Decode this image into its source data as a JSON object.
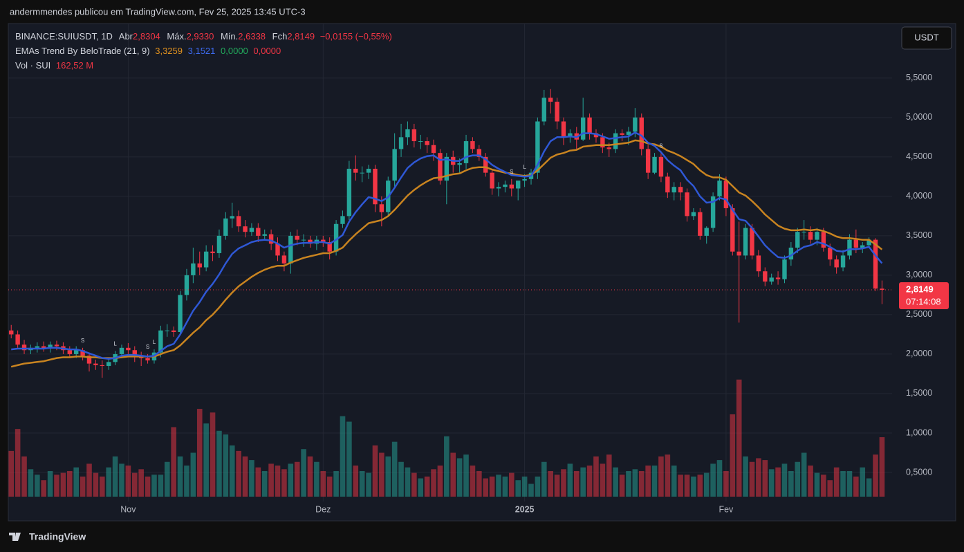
{
  "page": {
    "caption": "andermmendes publicou em TradingView.com, Fev 25, 2025 13:45 UTC-3",
    "brand": "TradingView"
  },
  "chart_data": {
    "type": "candlestick",
    "title": "BINANCE:SUIUSDT, 1D",
    "ohlc_labels": [
      {
        "label": "Abr",
        "value": "2,8304"
      },
      {
        "label": "Máx.",
        "value": "2,9330"
      },
      {
        "label": "Mín.",
        "value": "2,6338"
      },
      {
        "label": "Fch",
        "value": "2,8149"
      }
    ],
    "change": "−0,0155 (−0,55%)",
    "indicator": {
      "name": "EMAs Trend By BeloTrade (21, 9)",
      "values": [
        "3,3259",
        "3,1521",
        "0,0000",
        "0,0000"
      ]
    },
    "volume_legend": {
      "name": "Vol · SUI",
      "value": "162,52 M"
    },
    "currency": "USDT",
    "last_price": {
      "label": "2,8149",
      "countdown": "07:14:08"
    },
    "up_color": "#26a69a",
    "down_color": "#f23645",
    "open": [
      2.3,
      2.25,
      2.12,
      2.05,
      2.08,
      2.1,
      2.07,
      2.12,
      2.1,
      2.05,
      2.0,
      2.05,
      1.98,
      1.88,
      1.86,
      1.85,
      1.9,
      2.0,
      2.08,
      2.05,
      1.98,
      1.95,
      1.92,
      2.02,
      2.3,
      2.3,
      2.28,
      2.75,
      3.0,
      3.15,
      3.1,
      3.3,
      3.28,
      3.5,
      3.72,
      3.75,
      3.62,
      3.55,
      3.6,
      3.5,
      3.52,
      3.4,
      3.25,
      3.15,
      3.5,
      3.45,
      3.45,
      3.4,
      3.45,
      3.42,
      3.3,
      3.65,
      3.75,
      4.35,
      4.3,
      4.3,
      4.35,
      3.9,
      3.8,
      4.2,
      4.6,
      4.75,
      4.85,
      4.7,
      4.7,
      4.65,
      4.55,
      4.2,
      4.5,
      4.4,
      4.42,
      4.7,
      4.6,
      4.5,
      4.3,
      4.1,
      4.12,
      4.15,
      4.1,
      4.2,
      4.22,
      4.3,
      4.95,
      5.25,
      5.2,
      4.95,
      4.75,
      4.8,
      4.72,
      5.0,
      4.8,
      4.75,
      4.62,
      4.6,
      4.8,
      4.78,
      4.82,
      5.0,
      4.6,
      4.3,
      4.5,
      4.25,
      4.05,
      4.12,
      4.05,
      3.75,
      3.8,
      3.5,
      3.6,
      4.0,
      4.2,
      3.85,
      3.3,
      3.25,
      3.6,
      3.25,
      3.05,
      2.92,
      2.97,
      2.95,
      3.2,
      3.35,
      3.55,
      3.55,
      3.45,
      3.55,
      3.35,
      3.2,
      3.1,
      3.25,
      3.45,
      3.35,
      3.38,
      3.45,
      2.8304
    ],
    "high": [
      2.37,
      2.3,
      2.18,
      2.12,
      2.15,
      2.16,
      2.16,
      2.17,
      2.15,
      2.1,
      2.1,
      2.08,
      2.02,
      1.93,
      1.92,
      1.95,
      2.04,
      2.12,
      2.14,
      2.1,
      2.03,
      2.0,
      2.06,
      2.36,
      2.38,
      2.35,
      2.8,
      3.08,
      3.35,
      3.3,
      3.38,
      3.38,
      3.58,
      3.8,
      3.92,
      3.82,
      3.7,
      3.66,
      3.66,
      3.58,
      3.58,
      3.48,
      3.3,
      3.55,
      3.58,
      3.52,
      3.5,
      3.5,
      3.5,
      3.48,
      3.7,
      3.82,
      4.45,
      4.52,
      4.38,
      4.4,
      4.4,
      4.0,
      4.25,
      4.8,
      4.92,
      4.95,
      4.92,
      4.78,
      4.75,
      4.72,
      4.6,
      4.55,
      4.58,
      4.48,
      4.78,
      4.75,
      4.65,
      4.55,
      4.35,
      4.18,
      4.2,
      4.22,
      4.18,
      4.28,
      4.35,
      5.0,
      5.35,
      5.36,
      5.25,
      5.0,
      4.85,
      4.88,
      5.25,
      5.05,
      4.85,
      4.8,
      4.68,
      4.85,
      4.85,
      4.88,
      5.12,
      5.05,
      4.65,
      4.55,
      4.55,
      4.3,
      4.18,
      4.18,
      4.1,
      3.85,
      3.85,
      3.62,
      4.05,
      4.28,
      4.25,
      3.9,
      3.68,
      3.65,
      3.65,
      3.32,
      3.1,
      3.02,
      3.05,
      3.25,
      3.42,
      3.6,
      3.7,
      3.62,
      3.6,
      3.6,
      3.4,
      3.25,
      3.32,
      3.52,
      3.58,
      3.42,
      3.48,
      3.47,
      2.933
    ],
    "low": [
      2.2,
      2.08,
      2.0,
      2.0,
      2.02,
      2.03,
      2.02,
      2.05,
      2.0,
      1.96,
      1.95,
      1.92,
      1.78,
      1.8,
      1.7,
      1.8,
      1.86,
      1.95,
      2.0,
      1.9,
      1.85,
      1.88,
      1.88,
      1.96,
      2.22,
      2.22,
      2.25,
      2.68,
      2.9,
      3.0,
      3.05,
      3.18,
      3.22,
      3.45,
      3.6,
      3.55,
      3.48,
      3.5,
      3.42,
      3.44,
      3.32,
      3.18,
      3.05,
      3.02,
      3.38,
      3.36,
      3.35,
      3.32,
      3.36,
      3.2,
      3.25,
      3.6,
      3.7,
      4.2,
      4.18,
      4.22,
      3.8,
      3.62,
      3.75,
      4.1,
      4.5,
      4.65,
      4.62,
      4.6,
      4.55,
      4.45,
      4.15,
      3.9,
      4.3,
      4.3,
      4.35,
      4.55,
      4.45,
      4.25,
      4.02,
      4.0,
      4.05,
      4.0,
      3.95,
      4.12,
      4.15,
      4.22,
      4.9,
      5.05,
      4.85,
      4.65,
      4.68,
      4.6,
      4.7,
      4.72,
      4.68,
      4.55,
      4.5,
      4.55,
      4.7,
      4.65,
      4.75,
      4.52,
      4.22,
      4.28,
      4.18,
      3.98,
      3.95,
      3.95,
      3.68,
      3.7,
      3.45,
      3.4,
      3.55,
      3.95,
      3.75,
      3.25,
      2.4,
      3.2,
      3.2,
      2.98,
      2.86,
      2.88,
      2.88,
      2.9,
      3.12,
      3.28,
      3.45,
      3.4,
      3.38,
      3.3,
      3.12,
      3.02,
      3.05,
      3.2,
      3.28,
      3.28,
      3.35,
      2.8,
      2.6338
    ],
    "close": [
      2.25,
      2.12,
      2.05,
      2.08,
      2.1,
      2.07,
      2.12,
      2.1,
      2.05,
      2.0,
      2.05,
      1.98,
      1.88,
      1.86,
      1.85,
      1.9,
      2.0,
      2.08,
      2.05,
      1.98,
      1.95,
      1.92,
      2.02,
      2.3,
      2.3,
      2.28,
      2.75,
      3.0,
      3.15,
      3.1,
      3.3,
      3.28,
      3.5,
      3.72,
      3.75,
      3.62,
      3.55,
      3.6,
      3.5,
      3.52,
      3.4,
      3.25,
      3.15,
      3.5,
      3.45,
      3.45,
      3.4,
      3.45,
      3.42,
      3.3,
      3.65,
      3.75,
      4.35,
      4.3,
      4.3,
      4.35,
      3.9,
      3.8,
      4.2,
      4.6,
      4.75,
      4.85,
      4.7,
      4.7,
      4.65,
      4.55,
      4.2,
      4.5,
      4.4,
      4.42,
      4.7,
      4.6,
      4.5,
      4.3,
      4.1,
      4.12,
      4.15,
      4.1,
      4.2,
      4.22,
      4.3,
      4.95,
      5.25,
      5.2,
      4.95,
      4.75,
      4.8,
      4.72,
      5.0,
      4.8,
      4.75,
      4.62,
      4.6,
      4.8,
      4.78,
      4.82,
      5.0,
      4.6,
      4.3,
      4.5,
      4.25,
      4.05,
      4.12,
      4.05,
      3.75,
      3.8,
      3.5,
      3.6,
      4.0,
      4.2,
      3.85,
      3.3,
      3.25,
      3.6,
      3.25,
      3.05,
      2.92,
      2.97,
      2.95,
      3.2,
      3.35,
      3.55,
      3.55,
      3.45,
      3.55,
      3.35,
      3.2,
      3.1,
      3.25,
      3.45,
      3.35,
      3.38,
      3.45,
      2.8304,
      2.8149
    ],
    "volume": [
      125,
      185,
      110,
      75,
      60,
      45,
      70,
      60,
      65,
      70,
      80,
      55,
      90,
      65,
      55,
      80,
      110,
      90,
      85,
      65,
      75,
      55,
      60,
      60,
      95,
      190,
      110,
      85,
      120,
      240,
      200,
      230,
      180,
      170,
      140,
      125,
      110,
      100,
      80,
      70,
      90,
      85,
      75,
      90,
      95,
      130,
      110,
      95,
      70,
      55,
      70,
      220,
      205,
      85,
      70,
      65,
      140,
      120,
      110,
      150,
      95,
      80,
      65,
      50,
      55,
      75,
      85,
      165,
      120,
      105,
      115,
      85,
      70,
      50,
      55,
      60,
      55,
      65,
      45,
      55,
      35,
      55,
      95,
      70,
      60,
      75,
      90,
      70,
      80,
      85,
      110,
      90,
      115,
      80,
      60,
      70,
      75,
      70,
      85,
      85,
      110,
      115,
      85,
      60,
      60,
      55,
      60,
      65,
      90,
      100,
      70,
      225,
      320,
      110,
      95,
      105,
      100,
      75,
      80,
      90,
      70,
      95,
      120,
      85,
      65,
      60,
      45,
      80,
      70,
      70,
      55,
      80,
      50,
      115,
      162.52
    ],
    "ema": [
      {
        "color": "#c98420",
        "values": [
          1.84,
          1.86,
          1.88,
          1.89,
          1.9,
          1.91,
          1.93,
          1.95,
          1.96,
          1.96,
          1.97,
          1.97,
          1.96,
          1.96,
          1.95,
          1.95,
          1.95,
          1.96,
          1.97,
          1.97,
          1.97,
          1.97,
          1.97,
          2.0,
          2.03,
          2.05,
          2.11,
          2.19,
          2.27,
          2.34,
          2.43,
          2.5,
          2.59,
          2.69,
          2.78,
          2.86,
          2.92,
          2.98,
          3.03,
          3.07,
          3.1,
          3.12,
          3.12,
          3.16,
          3.19,
          3.22,
          3.24,
          3.26,
          3.28,
          3.28,
          3.31,
          3.35,
          3.44,
          3.52,
          3.59,
          3.66,
          3.68,
          3.7,
          3.75,
          3.83,
          3.92,
          4.01,
          4.08,
          4.14,
          4.19,
          4.23,
          4.24,
          4.26,
          4.28,
          4.29,
          4.33,
          4.36,
          4.37,
          4.37,
          4.34,
          4.32,
          4.3,
          4.29,
          4.27,
          4.26,
          4.27,
          4.33,
          4.41,
          4.49,
          4.53,
          4.55,
          4.58,
          4.59,
          4.63,
          4.64,
          4.65,
          4.65,
          4.65,
          4.66,
          4.67,
          4.68,
          4.71,
          4.7,
          4.67,
          4.66,
          4.63,
          4.58,
          4.55,
          4.51,
          4.46,
          4.41,
          4.33,
          4.27,
          4.24,
          4.24,
          4.21,
          4.13,
          4.05,
          4.01,
          3.94,
          3.86,
          3.77,
          3.7,
          3.63,
          3.59,
          3.57,
          3.57,
          3.58,
          3.57,
          3.58,
          3.56,
          3.53,
          3.49,
          3.47,
          3.47,
          3.46,
          3.45,
          3.45,
          3.39,
          3.3259
        ]
      },
      {
        "color": "#2f58d6",
        "values": [
          2.06,
          2.07,
          2.07,
          2.07,
          2.07,
          2.07,
          2.08,
          2.08,
          2.07,
          2.06,
          2.06,
          2.04,
          2.01,
          1.98,
          1.95,
          1.94,
          1.95,
          1.98,
          1.99,
          1.99,
          1.98,
          1.97,
          1.98,
          2.04,
          2.1,
          2.13,
          2.25,
          2.4,
          2.55,
          2.66,
          2.79,
          2.89,
          3.01,
          3.15,
          3.27,
          3.34,
          3.38,
          3.42,
          3.44,
          3.45,
          3.44,
          3.4,
          3.35,
          3.38,
          3.4,
          3.41,
          3.41,
          3.42,
          3.42,
          3.4,
          3.45,
          3.51,
          3.68,
          3.8,
          3.9,
          3.99,
          3.97,
          3.94,
          3.99,
          4.11,
          4.24,
          4.36,
          4.43,
          4.48,
          4.51,
          4.52,
          4.46,
          4.47,
          4.45,
          4.45,
          4.5,
          4.52,
          4.52,
          4.47,
          4.4,
          4.35,
          4.31,
          4.27,
          4.26,
          4.25,
          4.26,
          4.4,
          4.57,
          4.7,
          4.75,
          4.75,
          4.76,
          4.75,
          4.8,
          4.8,
          4.79,
          4.76,
          4.73,
          4.74,
          4.75,
          4.76,
          4.81,
          4.77,
          4.68,
          4.64,
          4.56,
          4.46,
          4.39,
          4.33,
          4.21,
          4.13,
          4.0,
          3.92,
          3.93,
          3.98,
          3.96,
          3.83,
          3.71,
          3.69,
          3.6,
          3.49,
          3.38,
          3.3,
          3.23,
          3.22,
          3.25,
          3.31,
          3.36,
          3.38,
          3.42,
          3.4,
          3.36,
          3.31,
          3.3,
          3.33,
          3.33,
          3.34,
          3.36,
          3.25,
          3.1521
        ]
      }
    ],
    "signals": [
      {
        "x": 11,
        "label": "S"
      },
      {
        "x": 16,
        "label": "L"
      },
      {
        "x": 21,
        "label": "S"
      },
      {
        "x": 22,
        "label": "L"
      },
      {
        "x": 77,
        "label": "S"
      },
      {
        "x": 79,
        "label": "L"
      },
      {
        "x": 100,
        "label": "S"
      }
    ],
    "xlim": [
      -0.45,
      135.55
    ],
    "xticks": [
      {
        "value": 18,
        "label": "Nov"
      },
      {
        "value": 48,
        "label": "Dez"
      },
      {
        "value": 79,
        "label": "2025"
      },
      {
        "value": 110,
        "label": "Fev"
      }
    ],
    "ylim": [
      0,
      6.2
    ],
    "yticks": [
      {
        "value": 0.5,
        "label": "0,5000"
      },
      {
        "value": 1,
        "label": "1,0000"
      },
      {
        "value": 1.5,
        "label": "1,5000"
      },
      {
        "value": 2,
        "label": "2,0000"
      },
      {
        "value": 2.5,
        "label": "2,5000"
      },
      {
        "value": 3,
        "label": "3,0000"
      },
      {
        "value": 3.5,
        "label": "3,5000"
      },
      {
        "value": 4,
        "label": "4,0000"
      },
      {
        "value": 4.5,
        "label": "4,5000"
      },
      {
        "value": 5,
        "label": "5,0000"
      },
      {
        "value": 5.5,
        "label": "5,5000"
      }
    ],
    "grid": true
  }
}
